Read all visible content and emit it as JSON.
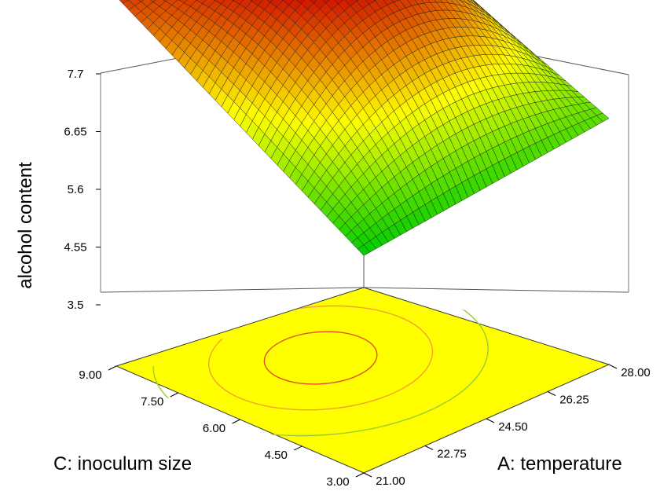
{
  "chart_data": {
    "type": "surface3d",
    "title": "",
    "xlabel": "A: temperature",
    "ylabel": "C: inoculum size",
    "zlabel": "alcohol content",
    "x_ticks": [
      "21.00",
      "22.75",
      "24.50",
      "26.25",
      "28.00"
    ],
    "y_ticks": [
      "3.00",
      "4.50",
      "6.00",
      "7.50",
      "9.00"
    ],
    "z_ticks": [
      "3.5",
      "4.55",
      "5.6",
      "6.65",
      "7.7"
    ],
    "xlim": [
      21.0,
      28.0
    ],
    "ylim": [
      3.0,
      9.0
    ],
    "zlim": [
      3.5,
      7.7
    ],
    "corners": [
      {
        "x": 21.0,
        "y": 3.0,
        "z": 4.2
      },
      {
        "x": 28.0,
        "y": 3.0,
        "z": 4.75
      },
      {
        "x": 21.0,
        "y": 9.0,
        "z": 7.1
      },
      {
        "x": 28.0,
        "y": 9.0,
        "z": 6.8
      }
    ],
    "design_point": {
      "x": 24.5,
      "y": 6.0,
      "z": 7.45
    },
    "contour_levels": [
      5.0,
      6.0,
      7.0
    ],
    "floor_color": "#ffff00",
    "surface_colors": {
      "low": "#00cc00",
      "mid": "#ffff00",
      "high": "#cc0000"
    }
  }
}
